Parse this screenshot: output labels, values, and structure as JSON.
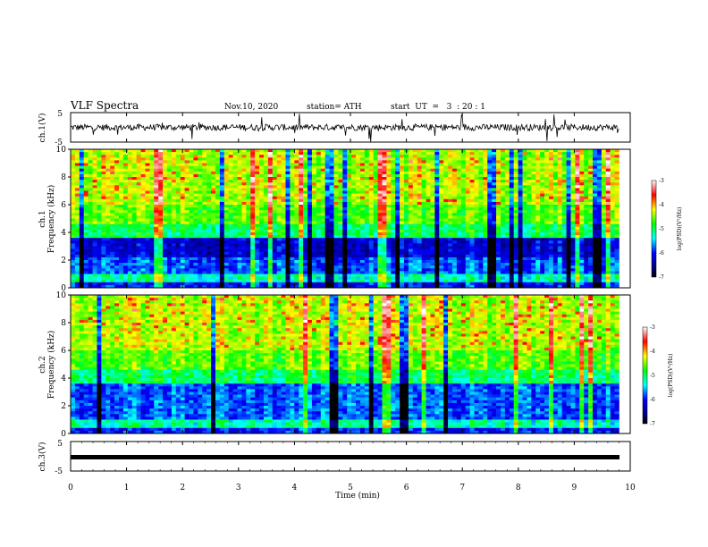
{
  "header": {
    "title": "VLF Spectra",
    "date": "Nov.10, 2020",
    "station": "station= ATH",
    "start_ut": "start  UT  =   3  : 20 : 1"
  },
  "colors": {
    "spectrogram_scale": [
      "#000080",
      "#0000ff",
      "#0080ff",
      "#00ffff",
      "#00ff80",
      "#80ff00",
      "#ffff00",
      "#ff8000",
      "#ff0000",
      "#ffffff"
    ]
  },
  "chart_data": [
    {
      "type": "line",
      "panel": "ch1-waveform",
      "ylabel": "ch.1(V)",
      "ylim": [
        -5,
        5
      ],
      "y_ticks": [
        "5",
        "-5"
      ],
      "xlim": [
        0,
        10
      ],
      "description_values": {
        "baseline": 0,
        "typical_amplitude": 1.5,
        "max_spike": 5
      }
    },
    {
      "type": "heatmap",
      "panel": "ch1-spectrogram",
      "ylabel": "ch.1\nFrequency (kHz)",
      "ylabel_line1": "ch.1",
      "ylabel_line2": "Frequency  (kHz)",
      "ylim": [
        0,
        10
      ],
      "y_ticks": [
        "0",
        "2",
        "4",
        "6",
        "8",
        "10"
      ],
      "xlim": [
        0,
        10
      ],
      "data_end_min": 9.8,
      "colorbar": {
        "label": "log(PSD)(V²/Hz)",
        "ticks": [
          "-3",
          "-4",
          "-5",
          "-6",
          "-7"
        ],
        "range": [
          -7,
          -3
        ]
      }
    },
    {
      "type": "heatmap",
      "panel": "ch2-spectrogram",
      "ylabel_line1": "ch.2",
      "ylabel_line2": "Frequency  (kHz)",
      "ylim": [
        0,
        10
      ],
      "y_ticks": [
        "0",
        "2",
        "4",
        "6",
        "8",
        "10"
      ],
      "xlim": [
        0,
        10
      ],
      "data_end_min": 9.8,
      "colorbar": {
        "label": "log(PSD)(V²/Hz)",
        "ticks": [
          "-3",
          "-4",
          "-5",
          "-6",
          "-7"
        ],
        "range": [
          -7,
          -3
        ]
      }
    },
    {
      "type": "line",
      "panel": "ch3-waveform",
      "ylabel": "ch.3(V)",
      "ylim": [
        -5,
        5
      ],
      "y_ticks": [
        "5",
        "-5"
      ],
      "xlim": [
        0,
        10
      ],
      "description_values": {
        "baseline": 0.5
      }
    }
  ],
  "xaxis": {
    "label": "Time  (min)",
    "ticks": [
      "0",
      "1",
      "2",
      "3",
      "4",
      "5",
      "6",
      "7",
      "8",
      "9",
      "10"
    ]
  }
}
